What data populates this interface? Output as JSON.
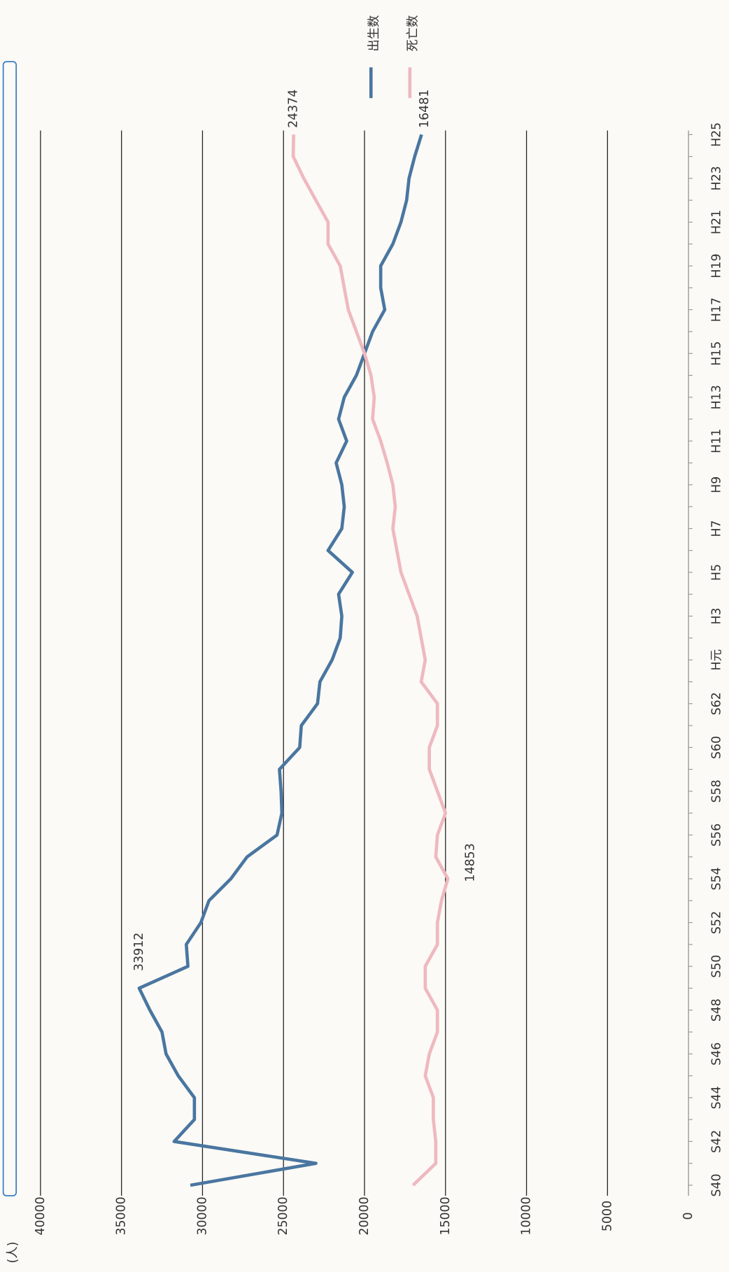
{
  "chart_data": {
    "type": "line",
    "y_label": "(人)",
    "categories": [
      "S40",
      null,
      "S42",
      null,
      "S44",
      null,
      "S46",
      null,
      "S48",
      null,
      "S50",
      null,
      "S52",
      null,
      "S54",
      null,
      "S56",
      null,
      "S58",
      null,
      "S60",
      null,
      "S62",
      null,
      "H元",
      null,
      "H3",
      null,
      "H5",
      null,
      "H7",
      null,
      "H9",
      null,
      "H11",
      null,
      "H13",
      null,
      "H15",
      null,
      "H17",
      null,
      "H19",
      null,
      "H21",
      null,
      "H23",
      null,
      "H25"
    ],
    "series": [
      {
        "name": "出生数",
        "color": "#4a76a0",
        "values": [
          30750,
          23000,
          31750,
          30500,
          30500,
          31500,
          32250,
          32500,
          33250,
          33912,
          30900,
          31000,
          30100,
          29600,
          28250,
          27250,
          25400,
          25100,
          25150,
          25250,
          24000,
          23900,
          22900,
          22750,
          22000,
          21500,
          21400,
          21600,
          20750,
          22250,
          21400,
          21250,
          21400,
          21750,
          21100,
          21600,
          21250,
          20500,
          20000,
          19500,
          18750,
          19000,
          19000,
          18250,
          17750,
          17400,
          17250,
          16900,
          16481
        ]
      },
      {
        "name": "死亡数",
        "color": "#efb8bf",
        "values": [
          17000,
          15600,
          15600,
          15750,
          15750,
          16250,
          16000,
          15500,
          15500,
          16250,
          16250,
          15500,
          15500,
          15250,
          14853,
          15600,
          15500,
          15000,
          15500,
          16000,
          16000,
          15500,
          15500,
          16500,
          16250,
          16500,
          16750,
          17250,
          17750,
          18000,
          18250,
          18100,
          18250,
          18600,
          19000,
          19500,
          19400,
          19600,
          20000,
          20500,
          21000,
          21250,
          21500,
          22250,
          22250,
          23000,
          23750,
          24400,
          24374
        ]
      }
    ],
    "ylim": [
      0,
      40000
    ],
    "yticks": [
      0,
      5000,
      10000,
      15000,
      20000,
      25000,
      30000,
      35000,
      40000
    ],
    "grid": true,
    "legend": "upper-right"
  }
}
